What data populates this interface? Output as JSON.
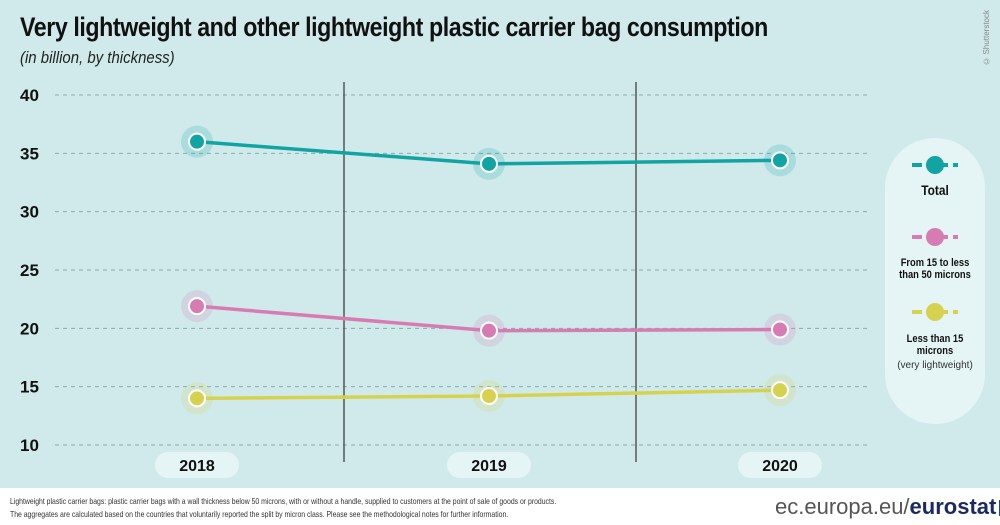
{
  "chart_data": {
    "type": "line",
    "title": "Very lightweight and other lightweight plastic carrier bag consumption",
    "subtitle": "(in billion, by thickness)",
    "categories": [
      "2018",
      "2019",
      "2020"
    ],
    "yticks": [
      10,
      15,
      20,
      25,
      30,
      35,
      40
    ],
    "ylim": [
      10,
      40
    ],
    "grid": true,
    "legend_position": "right",
    "series": [
      {
        "name": "Total",
        "color": "#12a3a3",
        "values": [
          36.0,
          34.1,
          34.4
        ]
      },
      {
        "name": "From 15 to less than 50 microns",
        "color": "#d67cb3",
        "values": [
          21.9,
          19.8,
          19.9
        ]
      },
      {
        "name": "Less than 15 microns",
        "note": "(very lightweight)",
        "color": "#d6d24f",
        "values": [
          14.0,
          14.2,
          14.7
        ]
      }
    ]
  },
  "credit": "© Shutterstock",
  "footer": {
    "line1": "Lightweight plastic carrier bags: plastic carrier bags with a wall thickness below 50 microns, with or without a handle, supplied to customers at the point of sale of goods or products.",
    "line2": "The aggregates are calculated based on the countries that voluntarily reported the split by micron class. Please see the methodological notes for further information.",
    "brand_site": "ec.europa.eu/",
    "brand_name": "eurostat"
  }
}
